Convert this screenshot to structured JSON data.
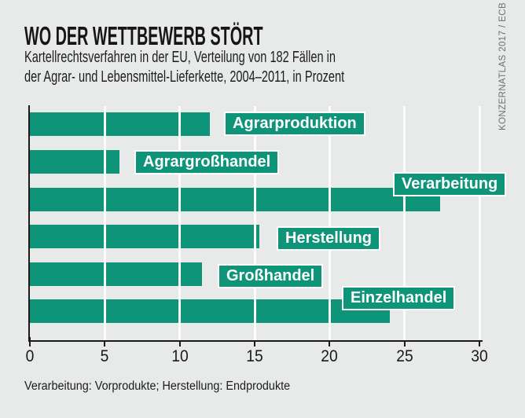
{
  "header": {
    "title": "WO DER WETTBEWERB STÖRT",
    "subtitle_line1": "Kartellrechtsverfahren in der EU, Verteilung von 182 Fällen in",
    "subtitle_line2": "der Agrar- und Lebensmittel-Lieferkette, 2004–2011, in Prozent"
  },
  "credit": "KONZERNATLAS 2017 / ECB",
  "footnote": "Verarbeitung: Vorprodukte; Herstellung: Endprodukte",
  "colors": {
    "background": "#e8eaea",
    "bar": "#0e9478",
    "bar_label_text": "#ffffff",
    "bar_label_border": "#ffffff",
    "gridline": "#fdfdfd",
    "axis": "#1a1a1a",
    "title_text": "#161616",
    "credit_text": "#6b7073"
  },
  "chart_data": {
    "type": "bar",
    "orientation": "horizontal",
    "title": "WO DER WETTBEWERB STÖRT",
    "subtitle": "Kartellrechtsverfahren in der EU, Verteilung von 182 Fällen in der Agrar- und Lebensmittel-Lieferkette, 2004–2011, in Prozent",
    "unit": "Prozent",
    "categories": [
      "Agrarproduktion",
      "Agrargroßhandel",
      "Verarbeitung",
      "Herstellung",
      "Großhandel",
      "Einzelhandel"
    ],
    "values": [
      12,
      6,
      27.4,
      15.3,
      11.5,
      24
    ],
    "xlim": [
      0,
      30
    ],
    "xticks": [
      0,
      5,
      10,
      15,
      20,
      25,
      30
    ],
    "grid": "vertical-white",
    "legend": "none"
  }
}
